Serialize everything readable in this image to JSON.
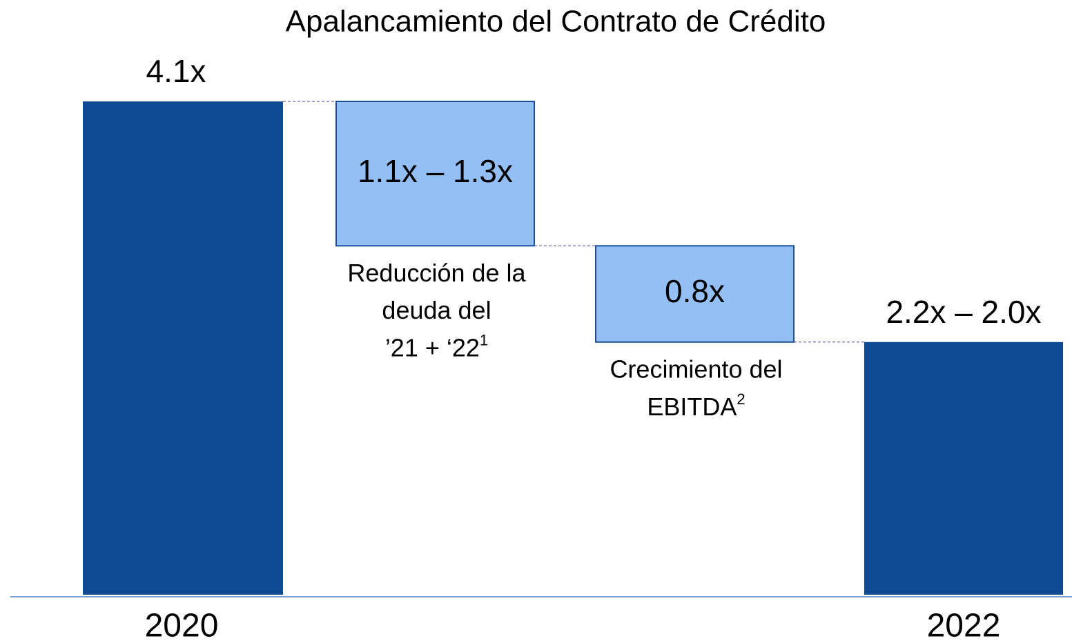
{
  "chart_data": {
    "type": "waterfall",
    "title": "Apalancamiento del Contrato de Crédito",
    "categories": [
      "2020",
      null,
      null,
      "2022"
    ],
    "values": [
      4.1,
      -1.2,
      -0.8,
      2.1
    ],
    "value_labels": [
      "4.1x",
      "1.1x – 1.3x",
      "0.8x",
      "2.2x – 2.0x"
    ],
    "kinds": [
      "total",
      "change",
      "change",
      "total"
    ],
    "notes": [
      null,
      {
        "lines": [
          "Reducción de la",
          "deuda del",
          "’21 + ‘22"
        ],
        "sup": "1"
      },
      {
        "lines": [
          "Crecimiento del",
          "EBITDA"
        ],
        "sup": "2"
      },
      null
    ],
    "color_total": "#0f4a93",
    "color_change": "#94bff5",
    "color_border": "#1b4f9a",
    "color_connector": "#7b5ea7"
  }
}
